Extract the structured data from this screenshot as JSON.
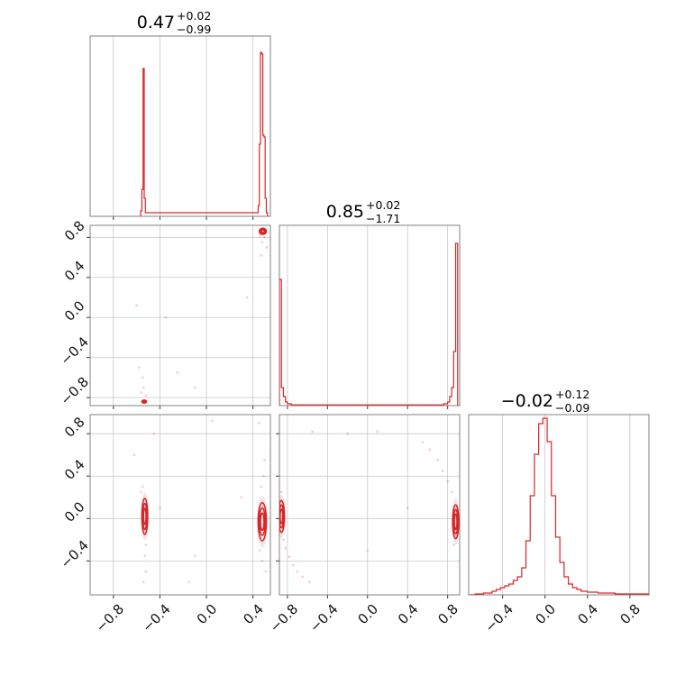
{
  "chart_data": {
    "type": "corner",
    "color": "#d62728",
    "parameters": [
      {
        "range": [
          -1.0,
          0.55
        ],
        "ticks": [
          -0.8,
          -0.4,
          0.0,
          0.4
        ],
        "tick_labels": [
          "−0.8",
          "−0.4",
          "0.0",
          "0.4"
        ],
        "title": {
          "median": "0.47",
          "plus": "+0.02",
          "minus": "−0.99"
        },
        "histogram": {
          "bins": [
            [
              -0.565,
              -0.555,
              0.03
            ],
            [
              -0.555,
              -0.545,
              0.15
            ],
            [
              -0.545,
              -0.535,
              0.82
            ],
            [
              -0.535,
              -0.525,
              0.1
            ],
            [
              -0.525,
              -0.515,
              0.02
            ],
            [
              0.435,
              0.445,
              0.02
            ],
            [
              0.445,
              0.455,
              0.06
            ],
            [
              0.455,
              0.465,
              0.4
            ],
            [
              0.465,
              0.475,
              0.91
            ],
            [
              0.475,
              0.485,
              0.9
            ],
            [
              0.485,
              0.495,
              0.45
            ],
            [
              0.495,
              0.505,
              0.44
            ],
            [
              0.505,
              0.515,
              0.1
            ],
            [
              0.515,
              0.525,
              0.02
            ]
          ]
        }
      },
      {
        "range": [
          -0.88,
          0.92
        ],
        "ticks": [
          -0.8,
          -0.4,
          0.0,
          0.4,
          0.8
        ],
        "tick_labels": [
          "−0.8",
          "−0.4",
          "0.0",
          "0.4",
          "0.8"
        ],
        "title": {
          "median": "0.85",
          "plus": "+0.02",
          "minus": "−1.71"
        },
        "histogram": {
          "bins": [
            [
              -0.88,
              -0.86,
              0.7
            ],
            [
              -0.86,
              -0.84,
              0.1
            ],
            [
              -0.84,
              -0.82,
              0.05
            ],
            [
              -0.82,
              -0.8,
              0.02
            ],
            [
              -0.8,
              -0.76,
              0.01
            ],
            [
              -0.76,
              0.76,
              0.004
            ],
            [
              0.76,
              0.8,
              0.01
            ],
            [
              0.8,
              0.82,
              0.02
            ],
            [
              0.82,
              0.84,
              0.05
            ],
            [
              0.84,
              0.86,
              0.1
            ],
            [
              0.86,
              0.88,
              0.3
            ],
            [
              0.88,
              0.9,
              0.9
            ]
          ]
        }
      },
      {
        "range": [
          -0.72,
          0.98
        ],
        "ticks": [
          -0.4,
          0.0,
          0.4,
          0.8
        ],
        "tick_labels": [
          "−0.4",
          "0.0",
          "0.4",
          "0.8"
        ],
        "title": {
          "median": "−0.02",
          "plus": "+0.12",
          "minus": "−0.09"
        },
        "histogram": {
          "bins": [
            [
              -0.72,
              -0.66,
              0.0
            ],
            [
              -0.66,
              -0.58,
              0.005
            ],
            [
              -0.58,
              -0.5,
              0.01
            ],
            [
              -0.5,
              -0.46,
              0.02
            ],
            [
              -0.46,
              -0.42,
              0.03
            ],
            [
              -0.42,
              -0.38,
              0.04
            ],
            [
              -0.38,
              -0.34,
              0.05
            ],
            [
              -0.34,
              -0.3,
              0.06
            ],
            [
              -0.3,
              -0.26,
              0.08
            ],
            [
              -0.26,
              -0.22,
              0.1
            ],
            [
              -0.22,
              -0.18,
              0.15
            ],
            [
              -0.18,
              -0.14,
              0.3
            ],
            [
              -0.14,
              -0.1,
              0.55
            ],
            [
              -0.1,
              -0.06,
              0.78
            ],
            [
              -0.06,
              -0.02,
              0.95
            ],
            [
              -0.02,
              0.02,
              0.98
            ],
            [
              0.02,
              0.06,
              0.85
            ],
            [
              0.06,
              0.1,
              0.55
            ],
            [
              0.1,
              0.14,
              0.32
            ],
            [
              0.14,
              0.18,
              0.18
            ],
            [
              0.18,
              0.22,
              0.1
            ],
            [
              0.22,
              0.26,
              0.06
            ],
            [
              0.26,
              0.3,
              0.04
            ],
            [
              0.3,
              0.34,
              0.03
            ],
            [
              0.34,
              0.4,
              0.02
            ],
            [
              0.4,
              0.5,
              0.015
            ],
            [
              0.5,
              0.66,
              0.01
            ],
            [
              0.66,
              0.98,
              0.005
            ]
          ]
        }
      }
    ],
    "kde_contours": [
      {
        "pair": [
          0,
          1
        ],
        "clusters": [
          {
            "cx": 0.485,
            "cy": 0.86,
            "rx": 0.03,
            "ry": 0.03
          },
          {
            "cx": -0.535,
            "cy": -0.84,
            "rx": 0.02,
            "ry": 0.015
          }
        ],
        "scatter": [
          [
            0.5,
            0.8
          ],
          [
            0.48,
            0.75
          ],
          [
            0.46,
            0.82
          ],
          [
            0.52,
            0.7
          ],
          [
            0.47,
            0.62
          ],
          [
            -0.6,
            0.12
          ],
          [
            -0.35,
            0.0
          ],
          [
            -0.25,
            -0.55
          ],
          [
            0.35,
            0.2
          ],
          [
            -0.1,
            -0.7
          ],
          [
            -0.56,
            -0.75
          ],
          [
            -0.54,
            -0.7
          ],
          [
            -0.52,
            -0.78
          ],
          [
            -0.55,
            -0.6
          ],
          [
            -0.58,
            -0.5
          ]
        ]
      },
      {
        "pair": [
          0,
          2
        ],
        "clusters": [
          {
            "cx": -0.53,
            "cy": 0.02,
            "rx": 0.025,
            "ry": 0.17
          },
          {
            "cx": 0.48,
            "cy": -0.03,
            "rx": 0.035,
            "ry": 0.18
          }
        ],
        "scatter": [
          [
            -0.55,
            0.3
          ],
          [
            -0.56,
            0.25
          ],
          [
            -0.52,
            -0.25
          ],
          [
            -0.53,
            -0.35
          ],
          [
            -0.52,
            -0.5
          ],
          [
            -0.54,
            -0.6
          ],
          [
            -0.62,
            0.6
          ],
          [
            -0.45,
            0.8
          ],
          [
            0.05,
            0.92
          ],
          [
            -0.1,
            -0.35
          ],
          [
            0.49,
            0.4
          ],
          [
            0.5,
            0.55
          ],
          [
            0.47,
            0.3
          ],
          [
            0.46,
            -0.3
          ],
          [
            0.48,
            -0.4
          ],
          [
            0.51,
            -0.5
          ],
          [
            0.45,
            0.9
          ],
          [
            -0.15,
            -0.6
          ],
          [
            0.3,
            0.2
          ],
          [
            -0.4,
            0.1
          ]
        ]
      },
      {
        "pair": [
          1,
          2
        ],
        "clusters": [
          {
            "cx": -0.86,
            "cy": 0.02,
            "rx": 0.03,
            "ry": 0.15
          },
          {
            "cx": 0.88,
            "cy": -0.03,
            "rx": 0.03,
            "ry": 0.16
          }
        ],
        "scatter": [
          [
            -0.84,
            -0.2
          ],
          [
            -0.82,
            -0.28
          ],
          [
            -0.78,
            -0.36
          ],
          [
            -0.74,
            -0.44
          ],
          [
            -0.7,
            -0.5
          ],
          [
            -0.65,
            -0.55
          ],
          [
            -0.58,
            -0.6
          ],
          [
            -0.86,
            0.25
          ],
          [
            0.84,
            0.25
          ],
          [
            0.8,
            0.35
          ],
          [
            0.75,
            0.45
          ],
          [
            0.7,
            0.55
          ],
          [
            0.62,
            0.65
          ],
          [
            0.55,
            0.72
          ],
          [
            0.86,
            -0.25
          ],
          [
            -0.2,
            0.8
          ],
          [
            0.1,
            0.82
          ],
          [
            -0.55,
            0.82
          ],
          [
            0.0,
            -0.3
          ],
          [
            0.4,
            0.1
          ]
        ]
      }
    ],
    "grid": true
  }
}
